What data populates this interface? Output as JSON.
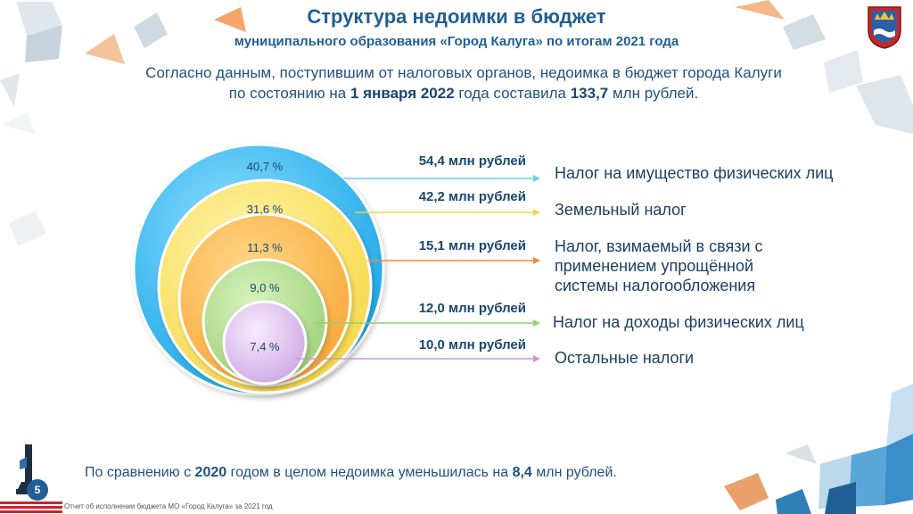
{
  "header": {
    "title": "Структура недоимки в бюджет",
    "subtitle": "муниципального образования «Город Калуга» по итогам 2021 года"
  },
  "intro": {
    "line1": "Согласно данным, поступившим от налоговых органов, недоимка в бюджет города Калуги",
    "line2_prefix": "по состоянию на ",
    "line2_date": "1 января 2022",
    "line2_mid": " года составила ",
    "line2_total": "133,7",
    "line2_suffix": " млн рублей."
  },
  "chart_data": {
    "type": "pie",
    "title": "Структура недоимки в бюджет муниципального образования «Город Калуга» по итогам 2021 года",
    "unit": "млн рублей",
    "total": 133.7,
    "categories": [
      "Налог на имущество физических лиц",
      "Земельный налог",
      "Налог, взимаемый в связи с применением упрощённой системы налогообложения",
      "Налог на доходы физических лиц",
      "Остальные налоги"
    ],
    "values": [
      54.4,
      42.2,
      15.1,
      12.0,
      10.0
    ],
    "percent_labels": [
      "40,7 %",
      "31,6 %",
      "11,3 %",
      "9,0 %",
      "7,4 %"
    ],
    "value_labels": [
      "54,4 млн рублей",
      "42,2 млн рублей",
      "15,1 млн рублей",
      "12,0 млн рублей",
      "10,0 млн рублей"
    ],
    "category_lines": [
      [
        "Налог на имущество физических лиц"
      ],
      [
        "Земельный налог"
      ],
      [
        "Налог, взимаемый в связи с",
        "применением упрощённой",
        "системы налогообложения"
      ],
      [
        "Налог на доходы физических лиц"
      ],
      [
        "Остальные налоги"
      ]
    ],
    "colors": [
      "#29b6f6",
      "#fde66a",
      "#fbb84a",
      "#a8d882",
      "#d8b4ec"
    ],
    "arrow_colors": [
      "#6ccdf5",
      "#f3d44a",
      "#f08a3a",
      "#8fd16a",
      "#c89ad8"
    ]
  },
  "bottom": {
    "prefix": "По сравнению с ",
    "year": "2020",
    "middle": " годом в целом недоимка уменьшилась на ",
    "amount": "8,4",
    "suffix": " млн рублей."
  },
  "footer": {
    "page_number": "5",
    "text": "Отчет об исполнении бюджета МО «Город Калуга» за 2021 год"
  }
}
